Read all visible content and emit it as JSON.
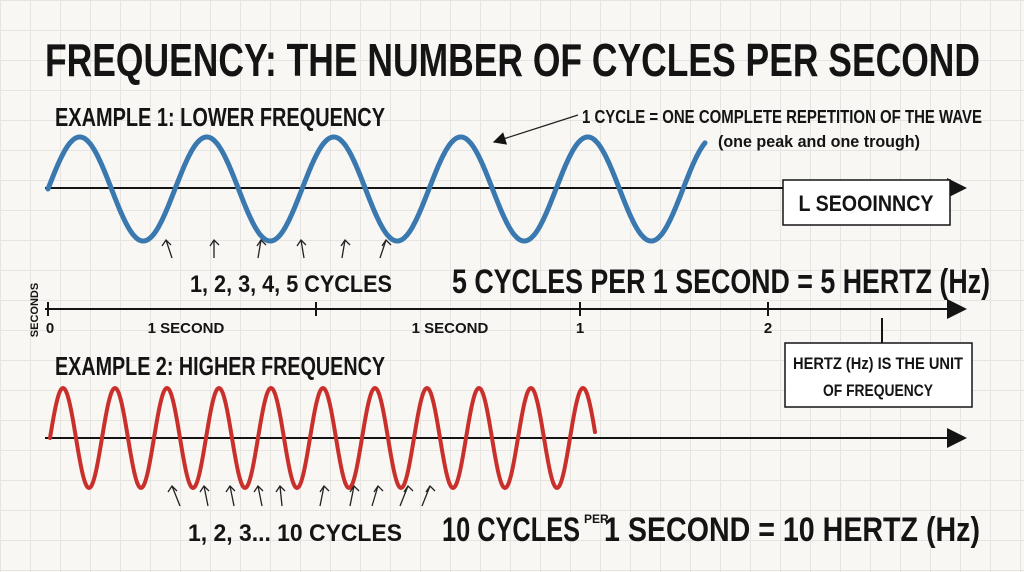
{
  "title": "FREQUENCY: THE NUMBER OF CYCLES PER SECOND",
  "example_1": {
    "label": "EXAMPLE 1: LOWER FREQUENCY",
    "annotation": {
      "line_1": "1 CYCLE = ONE COMPLETE REPETITION OF THE WAVE",
      "line_2": "(one peak and one trough)"
    },
    "box_label": "L SEOOINNCY",
    "cycles_label": "1, 2, 3, 4, 5 CYCLES",
    "summary": "5 CYCLES PER 1 SECOND = 5 HERTZ (Hz)"
  },
  "time_axis": {
    "axis_label": "SECONDS",
    "labels": [
      "0",
      "1 SECOND",
      "1 SECOND",
      "1",
      "2"
    ]
  },
  "example_2": {
    "label": "EXAMPLE 2: HIGHER FREQUENCY",
    "note": {
      "line_1": "HERTZ (Hz) IS THE UNIT",
      "line_2": "OF FREQUENCY"
    },
    "cycles_label": "1, 2, 3... 10 CYCLES",
    "summary": {
      "part_1": "10 CYCLES",
      "per": "PER",
      "part_2": "1 SECOND = 10 HERTZ (Hz)"
    }
  }
}
